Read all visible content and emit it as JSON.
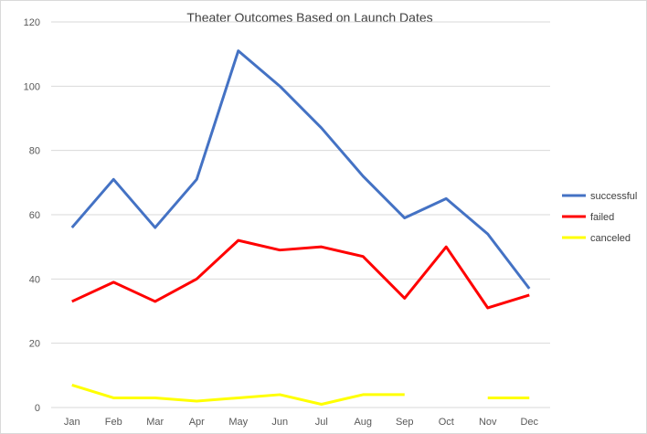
{
  "chart_data": {
    "type": "line",
    "title": "Theater Outcomes Based on Launch Dates",
    "xlabel": "",
    "ylabel": "",
    "categories": [
      "Jan",
      "Feb",
      "Mar",
      "Apr",
      "May",
      "Jun",
      "Jul",
      "Aug",
      "Sep",
      "Oct",
      "Nov",
      "Dec"
    ],
    "ylim": [
      0,
      120
    ],
    "yticks": [
      0,
      20,
      40,
      60,
      80,
      100,
      120
    ],
    "grid": true,
    "legend_position": "right",
    "series": [
      {
        "name": "successful",
        "color": "#4472C4",
        "values": [
          56,
          71,
          56,
          71,
          111,
          100,
          87,
          72,
          59,
          65,
          54,
          37
        ]
      },
      {
        "name": "failed",
        "color": "#FF0000",
        "values": [
          33,
          39,
          33,
          40,
          52,
          49,
          50,
          47,
          34,
          50,
          31,
          35
        ]
      },
      {
        "name": "canceled",
        "color": "#FFFF00",
        "values": [
          7,
          3,
          3,
          2,
          3,
          4,
          1,
          4,
          4,
          null,
          3,
          3
        ]
      }
    ]
  }
}
